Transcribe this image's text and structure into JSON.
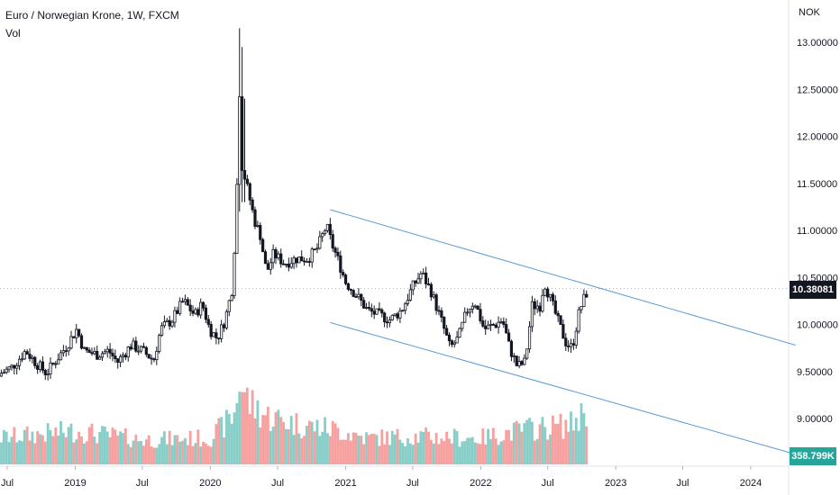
{
  "header": {
    "title": "Euro / Norwegian Krone, 1W, FXCM",
    "volume_label": "Vol",
    "currency": "NOK"
  },
  "chart_data": {
    "type": "candlestick",
    "price_ticks": [
      "13.00000",
      "12.50000",
      "12.00000",
      "11.50000",
      "11.00000",
      "10.50000",
      "10.00000",
      "9.50000",
      "9.00000"
    ],
    "price_tick_values": [
      13.0,
      12.5,
      12.0,
      11.5,
      11.0,
      10.5,
      10.0,
      9.5,
      9.0
    ],
    "time_ticks": [
      "Jul",
      "2019",
      "Jul",
      "2020",
      "Jul",
      "2021",
      "Jul",
      "2022",
      "Jul",
      "2023",
      "Jul",
      "2024"
    ],
    "time_tick_dates": [
      "2018-07-01",
      "2019-01-01",
      "2019-07-01",
      "2020-01-01",
      "2020-07-01",
      "2021-01-01",
      "2021-07-01",
      "2022-01-01",
      "2022-07-01",
      "2023-01-01",
      "2023-07-01",
      "2024-01-01"
    ],
    "last_price": "10.38081",
    "last_volume": "358.799K",
    "up_color": "#26a69a",
    "down_color": "#ef5350",
    "candle_color": "#131722",
    "trend_color": "#5b9bd5",
    "price_path": [
      [
        "2018-06-01",
        9.45
      ],
      [
        "2018-07-15",
        9.55
      ],
      [
        "2018-08-20",
        9.72
      ],
      [
        "2018-09-15",
        9.6
      ],
      [
        "2018-10-15",
        9.48
      ],
      [
        "2018-11-10",
        9.62
      ],
      [
        "2018-12-10",
        9.78
      ],
      [
        "2019-01-05",
        9.95
      ],
      [
        "2019-01-25",
        9.72
      ],
      [
        "2019-03-01",
        9.68
      ],
      [
        "2019-04-01",
        9.72
      ],
      [
        "2019-04-25",
        9.6
      ],
      [
        "2019-06-01",
        9.78
      ],
      [
        "2019-07-01",
        9.72
      ],
      [
        "2019-08-01",
        9.62
      ],
      [
        "2019-08-20",
        9.95
      ],
      [
        "2019-09-20",
        10.05
      ],
      [
        "2019-10-20",
        10.25
      ],
      [
        "2019-11-20",
        10.1
      ],
      [
        "2019-12-10",
        10.22
      ],
      [
        "2019-12-30",
        9.95
      ],
      [
        "2020-01-20",
        9.85
      ],
      [
        "2020-02-10",
        10.05
      ],
      [
        "2020-03-01",
        10.4
      ],
      [
        "2020-03-12",
        11.3
      ],
      [
        "2020-03-19",
        12.6
      ],
      [
        "2020-03-26",
        11.7
      ],
      [
        "2020-04-10",
        11.45
      ],
      [
        "2020-04-30",
        11.1
      ],
      [
        "2020-05-15",
        10.95
      ],
      [
        "2020-06-01",
        10.55
      ],
      [
        "2020-06-20",
        10.75
      ],
      [
        "2020-07-20",
        10.65
      ],
      [
        "2020-08-20",
        10.7
      ],
      [
        "2020-09-20",
        10.7
      ],
      [
        "2020-10-15",
        10.8
      ],
      [
        "2020-11-10",
        11.05
      ],
      [
        "2020-11-25",
        10.85
      ],
      [
        "2020-12-10",
        10.7
      ],
      [
        "2021-01-01",
        10.45
      ],
      [
        "2021-02-01",
        10.3
      ],
      [
        "2021-03-01",
        10.15
      ],
      [
        "2021-04-01",
        10.1
      ],
      [
        "2021-05-01",
        10.05
      ],
      [
        "2021-06-01",
        10.15
      ],
      [
        "2021-07-01",
        10.4
      ],
      [
        "2021-07-25",
        10.55
      ],
      [
        "2021-08-20",
        10.35
      ],
      [
        "2021-09-20",
        10.0
      ],
      [
        "2021-10-10",
        9.75
      ],
      [
        "2021-11-01",
        9.85
      ],
      [
        "2021-11-25",
        10.15
      ],
      [
        "2021-12-15",
        10.25
      ],
      [
        "2022-01-10",
        9.95
      ],
      [
        "2022-02-10",
        10.0
      ],
      [
        "2022-03-01",
        10.05
      ],
      [
        "2022-03-20",
        9.75
      ],
      [
        "2022-04-10",
        9.55
      ],
      [
        "2022-05-01",
        9.6
      ],
      [
        "2022-05-20",
        10.2
      ],
      [
        "2022-06-10",
        10.2
      ],
      [
        "2022-06-22",
        10.45
      ],
      [
        "2022-07-10",
        10.25
      ],
      [
        "2022-08-01",
        10.0
      ],
      [
        "2022-08-20",
        9.8
      ],
      [
        "2022-09-05",
        9.75
      ],
      [
        "2022-09-25",
        10.15
      ],
      [
        "2022-10-10",
        10.3
      ],
      [
        "2022-10-20",
        10.38
      ]
    ],
    "candle_spikes": [
      [
        "2020-03-19",
        13.15,
        11.2
      ],
      [
        "2020-03-26",
        12.95,
        11.3
      ],
      [
        "2020-04-02",
        12.4,
        11.3
      ]
    ],
    "trend_channel": {
      "upper": [
        [
          "2020-11-20",
          11.22
        ],
        [
          "2024-05-01",
          9.78
        ]
      ],
      "lower": [
        [
          "2020-11-20",
          10.02
        ],
        [
          "2024-05-01",
          8.62
        ]
      ]
    },
    "volume_path": [
      [
        "2018-06-01",
        0.3
      ],
      [
        "2019-01-01",
        0.38
      ],
      [
        "2019-07-01",
        0.28
      ],
      [
        "2020-01-01",
        0.3
      ],
      [
        "2020-03-05",
        0.55
      ],
      [
        "2020-03-19",
        0.95
      ],
      [
        "2020-04-15",
        0.7
      ],
      [
        "2020-06-01",
        0.55
      ],
      [
        "2020-09-01",
        0.45
      ],
      [
        "2020-12-01",
        0.4
      ],
      [
        "2021-03-01",
        0.3
      ],
      [
        "2021-07-01",
        0.32
      ],
      [
        "2022-01-01",
        0.3
      ],
      [
        "2022-05-01",
        0.4
      ],
      [
        "2022-09-01",
        0.45
      ],
      [
        "2022-10-20",
        0.65
      ]
    ]
  }
}
